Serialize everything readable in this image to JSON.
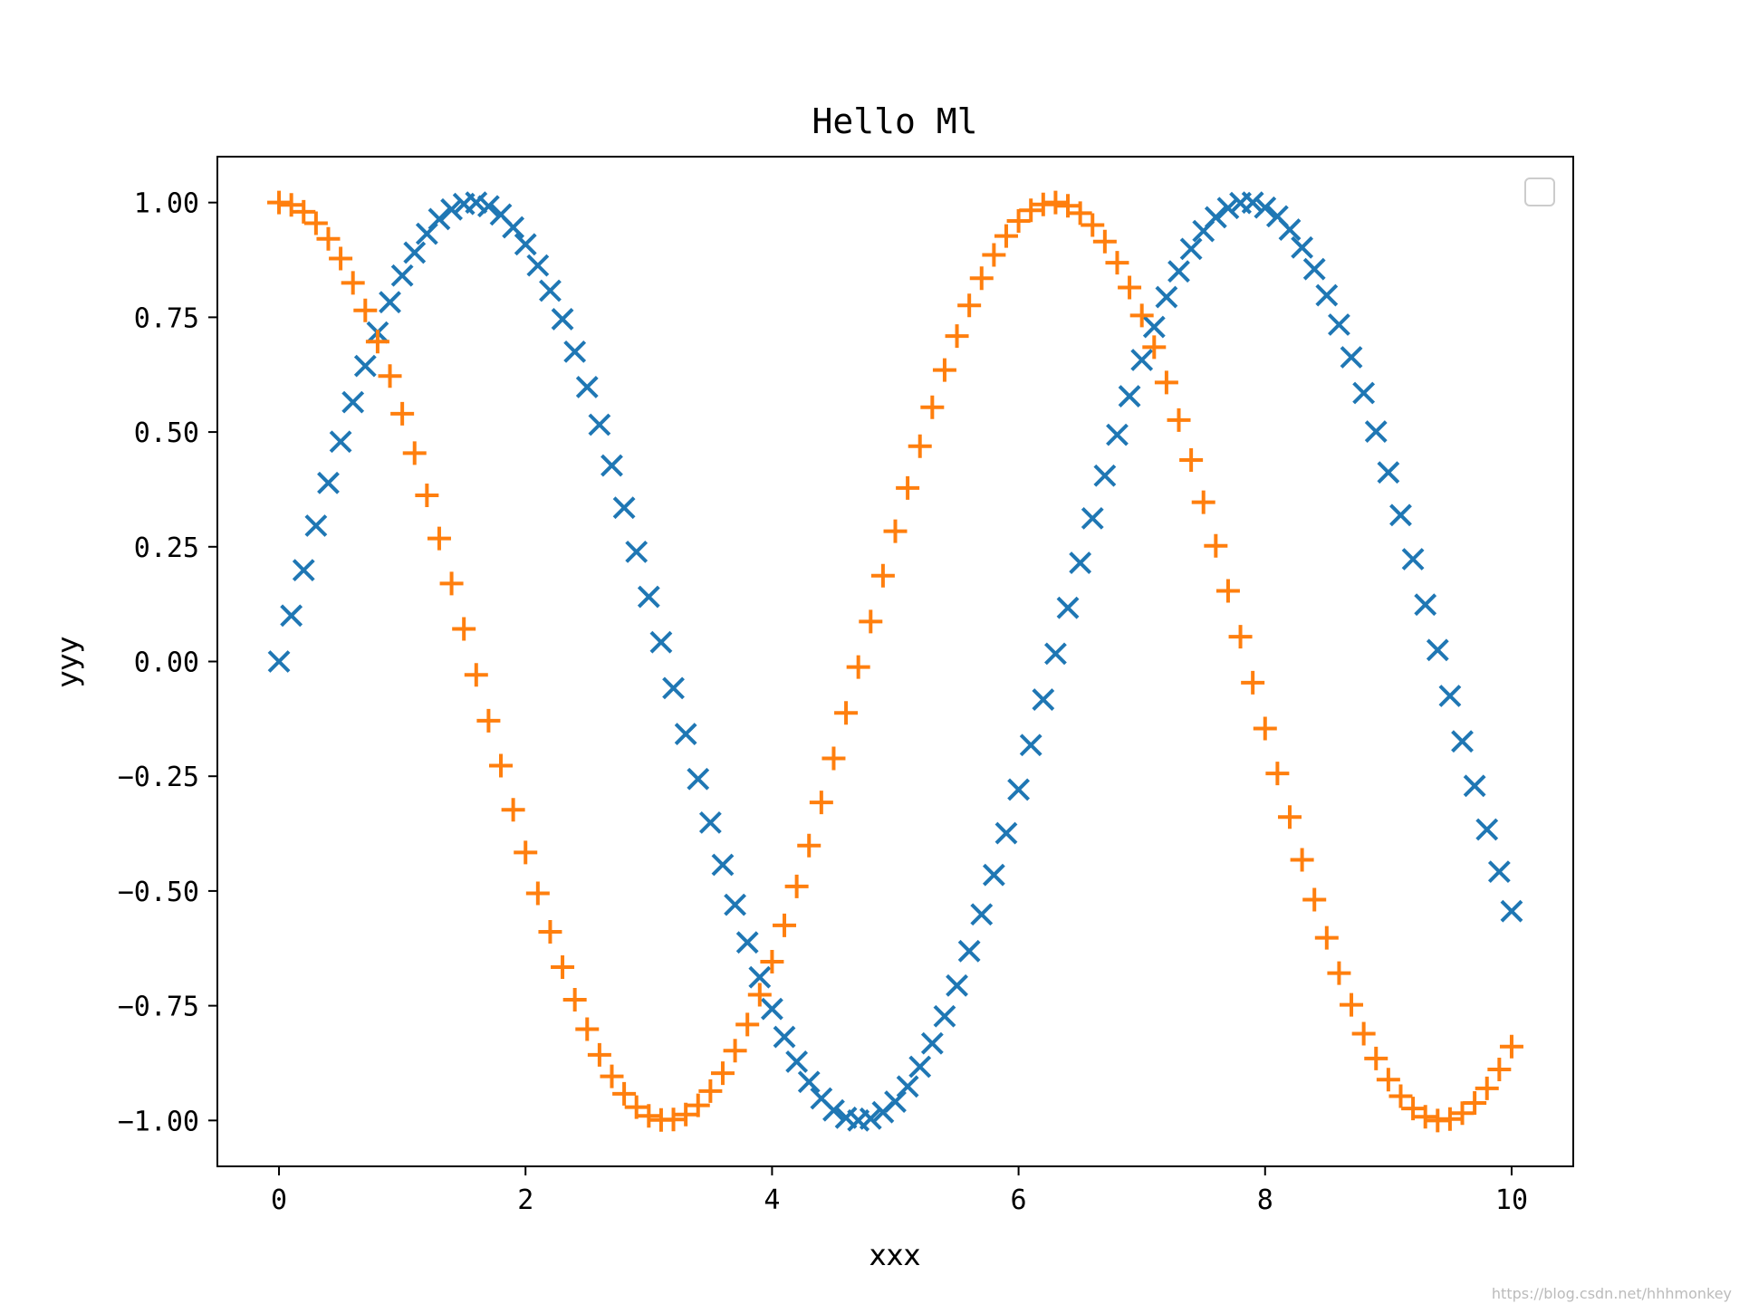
{
  "chart_data": {
    "type": "scatter",
    "title": "Hello Ml",
    "xlabel": "xxx",
    "ylabel": "yyy",
    "xlim": [
      -0.5,
      10.5
    ],
    "ylim": [
      -1.1,
      1.1
    ],
    "xticks": [
      0,
      2,
      4,
      6,
      8,
      10
    ],
    "yticks": [
      1.0,
      0.75,
      0.5,
      0.25,
      0.0,
      -0.25,
      -0.5,
      -0.75,
      -1.0
    ],
    "xtick_labels": [
      "0",
      "2",
      "4",
      "6",
      "8",
      "10"
    ],
    "ytick_labels": [
      "1.00",
      "0.75",
      "0.50",
      "0.25",
      "0.00",
      "−0.25",
      "−0.50",
      "−0.75",
      "−1.00"
    ],
    "grid": false,
    "legend": {
      "placement": "top-right",
      "entries": []
    },
    "x": [
      0.0,
      0.1,
      0.2,
      0.3,
      0.4,
      0.5,
      0.6,
      0.7,
      0.8,
      0.9,
      1.0,
      1.1,
      1.2,
      1.3,
      1.4,
      1.5,
      1.6,
      1.7,
      1.8,
      1.9,
      2.0,
      2.1,
      2.2,
      2.3,
      2.4,
      2.5,
      2.6,
      2.7,
      2.8,
      2.9,
      3.0,
      3.1,
      3.2,
      3.3,
      3.4,
      3.5,
      3.6,
      3.7,
      3.8,
      3.9,
      4.0,
      4.1,
      4.2,
      4.3,
      4.4,
      4.5,
      4.6,
      4.7,
      4.8,
      4.9,
      5.0,
      5.1,
      5.2,
      5.3,
      5.4,
      5.5,
      5.6,
      5.7,
      5.8,
      5.9,
      6.0,
      6.1,
      6.2,
      6.3,
      6.4,
      6.5,
      6.6,
      6.7,
      6.8,
      6.9,
      7.0,
      7.1,
      7.2,
      7.3,
      7.4,
      7.5,
      7.6,
      7.7,
      7.8,
      7.9,
      8.0,
      8.1,
      8.2,
      8.3,
      8.4,
      8.5,
      8.6,
      8.7,
      8.8,
      8.9,
      9.0,
      9.1,
      9.2,
      9.3,
      9.4,
      9.5,
      9.6,
      9.7,
      9.8,
      9.9,
      10.0
    ],
    "series": [
      {
        "marker": "x",
        "color": "#1f77b4",
        "values": [
          0.0,
          0.1,
          0.199,
          0.296,
          0.389,
          0.479,
          0.565,
          0.644,
          0.717,
          0.783,
          0.841,
          0.891,
          0.932,
          0.964,
          0.985,
          0.997,
          1.0,
          0.992,
          0.974,
          0.946,
          0.909,
          0.863,
          0.808,
          0.746,
          0.675,
          0.598,
          0.516,
          0.427,
          0.335,
          0.239,
          0.141,
          0.042,
          -0.058,
          -0.158,
          -0.256,
          -0.351,
          -0.443,
          -0.53,
          -0.612,
          -0.688,
          -0.757,
          -0.818,
          -0.872,
          -0.916,
          -0.952,
          -0.978,
          -0.994,
          -1.0,
          -0.996,
          -0.982,
          -0.959,
          -0.926,
          -0.883,
          -0.832,
          -0.773,
          -0.706,
          -0.631,
          -0.551,
          -0.465,
          -0.374,
          -0.279,
          -0.182,
          -0.083,
          0.017,
          0.117,
          0.215,
          0.312,
          0.405,
          0.494,
          0.578,
          0.657,
          0.729,
          0.794,
          0.85,
          0.899,
          0.938,
          0.968,
          0.988,
          0.999,
          1.0,
          0.989,
          0.97,
          0.941,
          0.902,
          0.855,
          0.798,
          0.734,
          0.663,
          0.585,
          0.501,
          0.412,
          0.319,
          0.223,
          0.124,
          0.025,
          -0.075,
          -0.174,
          -0.271,
          -0.366,
          -0.458,
          -0.544
        ]
      },
      {
        "marker": "+",
        "color": "#ff7f0e",
        "values": [
          1.0,
          0.995,
          0.98,
          0.955,
          0.921,
          0.878,
          0.825,
          0.765,
          0.697,
          0.622,
          0.54,
          0.454,
          0.362,
          0.268,
          0.17,
          0.071,
          -0.029,
          -0.129,
          -0.227,
          -0.323,
          -0.416,
          -0.505,
          -0.589,
          -0.666,
          -0.737,
          -0.801,
          -0.857,
          -0.904,
          -0.942,
          -0.971,
          -0.99,
          -0.999,
          -0.998,
          -0.987,
          -0.967,
          -0.936,
          -0.897,
          -0.848,
          -0.791,
          -0.726,
          -0.654,
          -0.575,
          -0.49,
          -0.401,
          -0.307,
          -0.211,
          -0.112,
          -0.012,
          0.087,
          0.187,
          0.284,
          0.378,
          0.469,
          0.554,
          0.635,
          0.709,
          0.776,
          0.835,
          0.886,
          0.927,
          0.96,
          0.983,
          0.996,
          1.0,
          0.993,
          0.977,
          0.951,
          0.915,
          0.869,
          0.815,
          0.754,
          0.685,
          0.608,
          0.526,
          0.439,
          0.347,
          0.252,
          0.154,
          0.054,
          -0.046,
          -0.146,
          -0.244,
          -0.339,
          -0.432,
          -0.519,
          -0.602,
          -0.679,
          -0.748,
          -0.811,
          -0.865,
          -0.911,
          -0.947,
          -0.974,
          -0.992,
          -1.0,
          -0.997,
          -0.984,
          -0.962,
          -0.93,
          -0.889,
          -0.839
        ]
      }
    ]
  },
  "watermark": "https://blog.csdn.net/hhhmonkey"
}
